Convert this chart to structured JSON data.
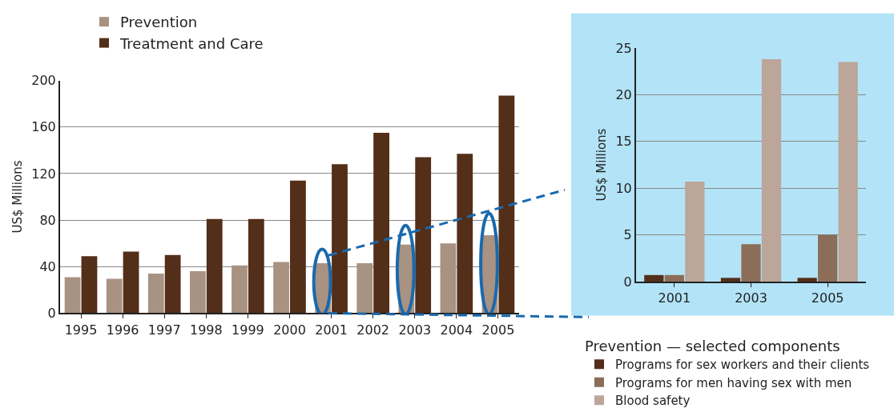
{
  "chart_data": [
    {
      "type": "bar",
      "ylabel": "US$ Millions",
      "categories": [
        "1995",
        "1996",
        "1997",
        "1998",
        "1999",
        "2000",
        "2001",
        "2002",
        "2003",
        "2004",
        "2005"
      ],
      "series": [
        {
          "name": "Prevention",
          "color": "#a89282",
          "values": [
            31,
            29.5,
            34,
            36,
            41,
            44,
            43,
            43,
            59,
            60,
            67
          ]
        },
        {
          "name": "Treatment and Care",
          "color": "#532e18",
          "values": [
            49,
            53,
            50,
            81,
            81,
            114,
            128,
            155,
            134,
            137,
            187
          ]
        }
      ],
      "ylim": [
        0,
        200
      ],
      "yticks": [
        0,
        40,
        80,
        120,
        160,
        200
      ],
      "grid": "y",
      "legend": "top left"
    },
    {
      "type": "bar",
      "ylabel": "US$ Millions",
      "legend_title": "Prevention — selected components",
      "categories": [
        "2001",
        "2003",
        "2005"
      ],
      "series": [
        {
          "name": "Programs for sex workers and their clients",
          "color": "#532e18",
          "values": [
            0.7,
            0.4,
            0.4
          ]
        },
        {
          "name": "Programs for men having sex with men",
          "color": "#8b6d58",
          "values": [
            0.7,
            4.0,
            5.0
          ]
        },
        {
          "name": "Blood safety",
          "color": "#bba699",
          "values": [
            10.7,
            23.8,
            23.5
          ]
        }
      ],
      "ylim": [
        0,
        25
      ],
      "yticks": [
        0,
        5,
        10,
        15,
        20,
        25
      ],
      "grid": "y",
      "legend": "bottom"
    }
  ]
}
